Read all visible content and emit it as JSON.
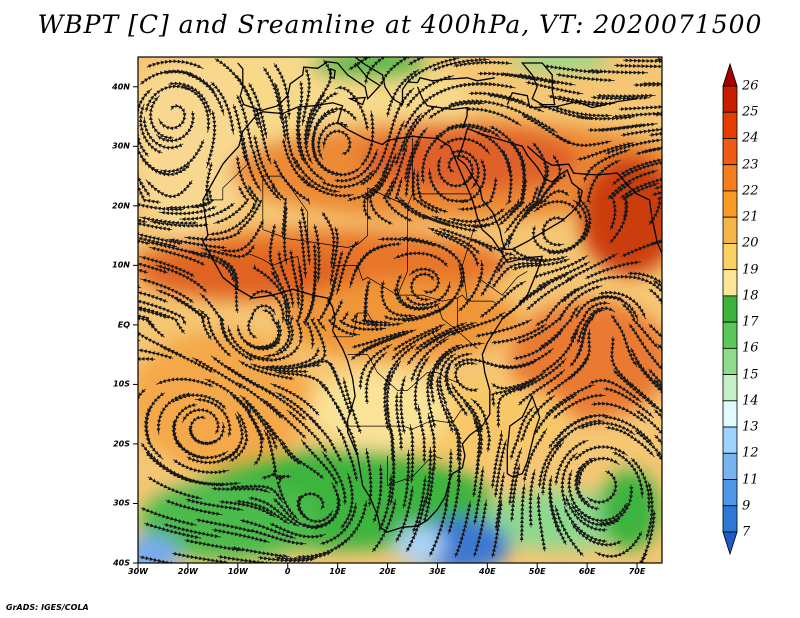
{
  "title": "WBPT [C] and Sreamline at 400hPa, VT: 2020071500",
  "footer": "GrADS: IGES/COLA",
  "map": {
    "lon_range": [
      -30,
      75
    ],
    "lat_range": [
      -40,
      45
    ],
    "lon_ticks": [
      {
        "v": -30,
        "label": "30W"
      },
      {
        "v": -20,
        "label": "20W"
      },
      {
        "v": -10,
        "label": "10W"
      },
      {
        "v": 0,
        "label": "0"
      },
      {
        "v": 10,
        "label": "10E"
      },
      {
        "v": 20,
        "label": "20E"
      },
      {
        "v": 30,
        "label": "30E"
      },
      {
        "v": 40,
        "label": "40E"
      },
      {
        "v": 50,
        "label": "50E"
      },
      {
        "v": 60,
        "label": "60E"
      },
      {
        "v": 70,
        "label": "70E"
      }
    ],
    "lat_ticks": [
      {
        "v": 40,
        "label": "40N"
      },
      {
        "v": 30,
        "label": "30N"
      },
      {
        "v": 20,
        "label": "20N"
      },
      {
        "v": 10,
        "label": "10N"
      },
      {
        "v": 0,
        "label": "EQ"
      },
      {
        "v": -10,
        "label": "10S"
      },
      {
        "v": -20,
        "label": "20S"
      },
      {
        "v": -30,
        "label": "30S"
      },
      {
        "v": -40,
        "label": "40S"
      }
    ]
  },
  "colorbar": {
    "labels": [
      "26",
      "25",
      "24",
      "23",
      "22",
      "21",
      "20",
      "19",
      "18",
      "17",
      "16",
      "15",
      "14",
      "13",
      "12",
      "11",
      "9",
      "7"
    ],
    "colors": [
      "#a50000",
      "#c81e00",
      "#e63c00",
      "#f05a14",
      "#f57d1e",
      "#fa9b28",
      "#f5b446",
      "#fad264",
      "#fae696",
      "#3cb43c",
      "#5ac85a",
      "#8cdc8c",
      "#c8f0c8",
      "#e1faff",
      "#a0d2ff",
      "#78b4f0",
      "#5096e6",
      "#2d78d7",
      "#1e5ac8"
    ]
  },
  "colors": {
    "ocean_cool": "#f0c878",
    "warm_band": "#e8782a",
    "hot_core": "#d94010",
    "mid": "#f5b44a",
    "green": "#3cb43c",
    "light_green": "#8cdc8c",
    "blue": "#3c78d2",
    "light_blue": "#aad2f5",
    "line": "#1a1a1a"
  }
}
